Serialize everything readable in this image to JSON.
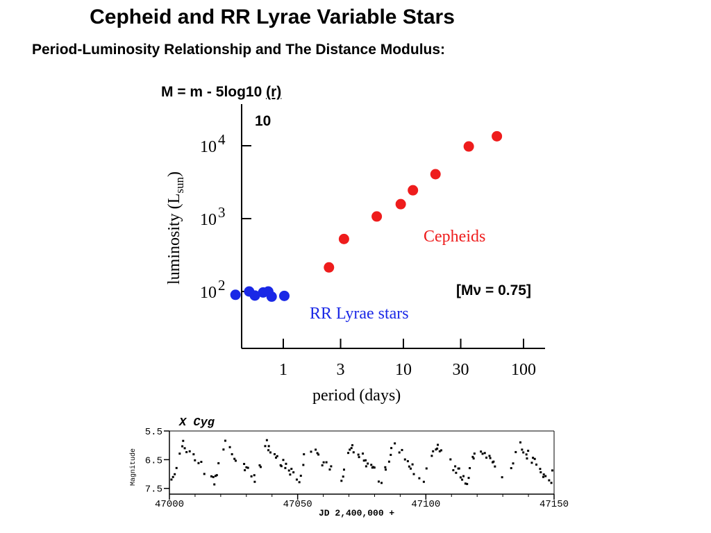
{
  "header": {
    "title": "Cepheid and RR Lyrae Variable Stars",
    "subtitle": "Period-Luminosity Relationship and The Distance Modulus:",
    "formula_prefix": "M = m - 5log10 ",
    "formula_r": "(r)",
    "ten_label": "10",
    "mv_label": "[Mν = 0.75]"
  },
  "chart_data": [
    {
      "type": "scatter",
      "title": "",
      "xlabel": "period  (days)",
      "ylabel_main": "luminosity (L",
      "ylabel_sub": "sun",
      "ylabel_close": ")",
      "x_scale": "log",
      "y_scale": "log",
      "x_ticks": [
        {
          "value": 1,
          "label": "1"
        },
        {
          "value": 3,
          "label": "3"
        },
        {
          "value": 10,
          "label": "10"
        },
        {
          "value": 30,
          "label": "30"
        },
        {
          "value": 100,
          "label": "100"
        }
      ],
      "y_ticks": [
        {
          "value": 100,
          "base": "10",
          "exp": "2"
        },
        {
          "value": 1000,
          "base": "10",
          "exp": "3"
        },
        {
          "value": 10000,
          "base": "10",
          "exp": "4"
        }
      ],
      "series": [
        {
          "name": "RR Lyrae stars",
          "color": "#1a28e6",
          "points": [
            {
              "x": 0.4,
              "y": 90
            },
            {
              "x": 0.52,
              "y": 100
            },
            {
              "x": 0.58,
              "y": 88
            },
            {
              "x": 0.68,
              "y": 97
            },
            {
              "x": 0.75,
              "y": 100
            },
            {
              "x": 0.8,
              "y": 85
            },
            {
              "x": 1.02,
              "y": 87
            }
          ]
        },
        {
          "name": "Cepheids",
          "color": "#ee1c1c",
          "points": [
            {
              "x": 2.4,
              "y": 214
            },
            {
              "x": 3.2,
              "y": 525
            },
            {
              "x": 6.0,
              "y": 1070
            },
            {
              "x": 9.5,
              "y": 1580
            },
            {
              "x": 12.0,
              "y": 2450
            },
            {
              "x": 18.5,
              "y": 4070
            },
            {
              "x": 35.0,
              "y": 9770
            },
            {
              "x": 60.0,
              "y": 13500
            }
          ]
        }
      ]
    },
    {
      "type": "scatter",
      "title": "X Cyg",
      "xlabel": "JD 2,400,000 +",
      "ylabel": "Magnitude",
      "x_ticks": [
        47000,
        47050,
        47100,
        47150
      ],
      "y_ticks": [
        "5.5",
        "6.5",
        "7.5"
      ],
      "xlim": [
        47000,
        47150
      ],
      "ylim": [
        5.5,
        7.7
      ],
      "y_inverted": true,
      "period_days": 16.4,
      "max_mag": 5.95,
      "min_mag": 7.25,
      "observations_from": 47000,
      "observations_to": 47150
    }
  ]
}
